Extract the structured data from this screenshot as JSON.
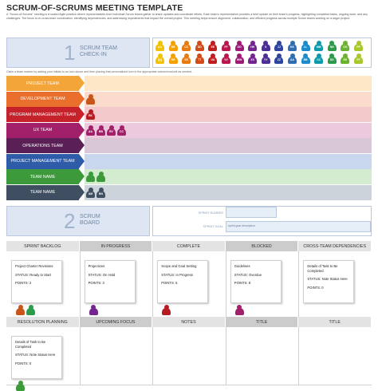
{
  "title": "SCRUM-OF-SCRUMS MEETING TEMPLATE",
  "intro": "A \"Scrum-of-Scrums\" meeting is a scaled Agile practice where representatives from individual Scrum teams gather to share updates and coordinate efforts. Each team's representative provides a brief update on their team's progress, highlighting completed tasks, ongoing work, and any challenges. The focus is on cross-team coordination, identifying dependencies, and addressing impediments that impact the overall project. This meeting helps ensure alignment, collaboration, and efficient progress across multiple Scrum teams working on a larger project.",
  "checkin": {
    "number": "1",
    "title_line1": "SCRUM TEAM",
    "title_line2": "CHECK-IN"
  },
  "instructions": "Claim a team marker by adding your initials to an icon above and then placing that personalized icon in the appropriate column/row/cell as needed.",
  "markers": [
    {
      "initials": "AA",
      "color": "#f2c200"
    },
    {
      "initials": "BB",
      "color": "#f4a000"
    },
    {
      "initials": "CC",
      "color": "#e87a12"
    },
    {
      "initials": "DD",
      "color": "#d24a18"
    },
    {
      "initials": "EE",
      "color": "#c21d1d"
    },
    {
      "initials": "FF",
      "color": "#b8174f"
    },
    {
      "initials": "GG",
      "color": "#9e1a78"
    },
    {
      "initials": "HH",
      "color": "#74258f"
    },
    {
      "initials": "II",
      "color": "#4a2f94"
    },
    {
      "initials": "JJ",
      "color": "#2f449e"
    },
    {
      "initials": "KK",
      "color": "#2f6db2"
    },
    {
      "initials": "LL",
      "color": "#1b8bc9"
    },
    {
      "initials": "MM",
      "color": "#0e9aa8"
    },
    {
      "initials": "NN",
      "color": "#2c9b4a"
    },
    {
      "initials": "OO",
      "color": "#6ab42d"
    },
    {
      "initials": "PP",
      "color": "#a9c72a"
    },
    {
      "initials": "QQ",
      "color": "#f2c200"
    },
    {
      "initials": "RR",
      "color": "#f4a000"
    },
    {
      "initials": "SS",
      "color": "#e87a12"
    },
    {
      "initials": "TT",
      "color": "#d24a18"
    },
    {
      "initials": "UU",
      "color": "#c21d1d"
    },
    {
      "initials": "VV",
      "color": "#b8174f"
    },
    {
      "initials": "WW",
      "color": "#9e1a78"
    },
    {
      "initials": "XX",
      "color": "#74258f"
    },
    {
      "initials": "YY",
      "color": "#4a2f94"
    },
    {
      "initials": "ZZ",
      "color": "#2f449e"
    },
    {
      "initials": "AA",
      "color": "#2f6db2"
    },
    {
      "initials": "BB",
      "color": "#1b8bc9"
    },
    {
      "initials": "CC",
      "color": "#0e9aa8"
    },
    {
      "initials": "DD",
      "color": "#2c9b4a"
    },
    {
      "initials": "EE",
      "color": "#6ab42d"
    },
    {
      "initials": "FF",
      "color": "#a9c72a"
    }
  ],
  "teams": [
    {
      "name": "PROJECT TEAM",
      "label_color": "#f4a53a",
      "fill_color": "#fde7c7",
      "pawns": []
    },
    {
      "name": "DEVELOPMENT TEAM",
      "label_color": "#ea6f2c",
      "fill_color": "#fbdccc",
      "pawns": [
        {
          "initials": "",
          "color": "#c8551a"
        }
      ]
    },
    {
      "name": "PROGRAM MANAGEMENT TEAM",
      "label_color": "#c6222b",
      "fill_color": "#f3c9cb",
      "pawns": [
        {
          "initials": "EK",
          "color": "#b51c24"
        }
      ]
    },
    {
      "name": "UX TEAM",
      "label_color": "#a21f6a",
      "fill_color": "#ecc9dc",
      "pawns": [
        {
          "initials": "AA",
          "color": "#a21f6a"
        },
        {
          "initials": "BB",
          "color": "#a21f6a"
        },
        {
          "initials": "RV",
          "color": "#a21f6a"
        },
        {
          "initials": "CC",
          "color": "#a21f6a"
        }
      ]
    },
    {
      "name": "OPERATIONS TEAM",
      "label_color": "#5a1f55",
      "fill_color": "#d9c7d8",
      "pawns": []
    },
    {
      "name": "PROJECT MANAGEMENT TEAM",
      "label_color": "#2e5ca8",
      "fill_color": "#c9d7ee",
      "pawns": []
    },
    {
      "name": "TEAM NAME",
      "label_color": "#3d9a3a",
      "fill_color": "#d3ecd0",
      "pawns": [
        {
          "initials": "",
          "color": "#3d9a3a"
        },
        {
          "initials": "",
          "color": "#3d9a3a"
        }
      ]
    },
    {
      "name": "TEAM NAME",
      "label_color": "#3f4f61",
      "fill_color": "#cdd3da",
      "pawns": [
        {
          "initials": "AM",
          "color": "#3f4f61"
        },
        {
          "initials": "BN",
          "color": "#3f4f61"
        }
      ]
    }
  ],
  "board": {
    "number": "2",
    "title_line1": "SCRUM",
    "title_line2": "BOARD",
    "sprint_number_label": "SPRINT NUMBER",
    "sprint_number_value": "",
    "sprint_goal_label": "SPRINT GOAL",
    "sprint_goal_value": "sprint goal description"
  },
  "columns": [
    {
      "label": "SPRINT BACKLOG",
      "color": "#e3e3e3"
    },
    {
      "label": "IN PROGRESS",
      "color": "#cccccc"
    },
    {
      "label": "COMPLETE",
      "color": "#e3e3e3"
    },
    {
      "label": "BLOCKED",
      "color": "#cccccc"
    },
    {
      "label": "CROSS-TEAM DEPENDENCIES",
      "color": "#e3e3e3"
    }
  ],
  "cards": [
    {
      "title": "Project Charter Revisions",
      "status": "STATUS: Ready to Start",
      "points": "POINTS: 2",
      "pawns": [
        {
          "initials": "",
          "color": "#c8551a"
        },
        {
          "initials": "",
          "color": "#2c9b4a"
        }
      ]
    },
    {
      "title": "Projections",
      "status": "STATUS: On Hold",
      "points": "POINTS: 3",
      "pawns": [
        {
          "initials": "",
          "color": "#74258f"
        }
      ]
    },
    {
      "title": "Scope and Goal Setting",
      "status": "STATUS: In Progress",
      "points": "POINTS: 5",
      "pawns": [
        {
          "initials": "",
          "color": "#b51c24"
        }
      ]
    },
    {
      "title": "Guidelines",
      "status": "STATUS: Overdue",
      "points": "POINTS: 8",
      "pawns": [
        {
          "initials": "",
          "color": "#a21f6a"
        }
      ]
    },
    {
      "title": "Details of Task to Be Completed",
      "status": "STATUS: Note Status Here",
      "points": "POINTS: 0",
      "pawns": []
    }
  ],
  "columns2": [
    {
      "label": "RESOLUTION PLANNING",
      "color": "#e3e3e3"
    },
    {
      "label": "UPCOMING FOCUS",
      "color": "#cccccc"
    },
    {
      "label": "NOTES",
      "color": "#e3e3e3"
    },
    {
      "label": "TITLE",
      "color": "#cccccc"
    },
    {
      "label": "TITLE",
      "color": "#e3e3e3"
    }
  ],
  "card2": {
    "title": "Details of Task to Be Completed",
    "status": "STATUS: Note Status Here",
    "points": "POINTS: 0",
    "pawns": [
      {
        "initials": "",
        "color": "#3d9a3a"
      }
    ]
  }
}
